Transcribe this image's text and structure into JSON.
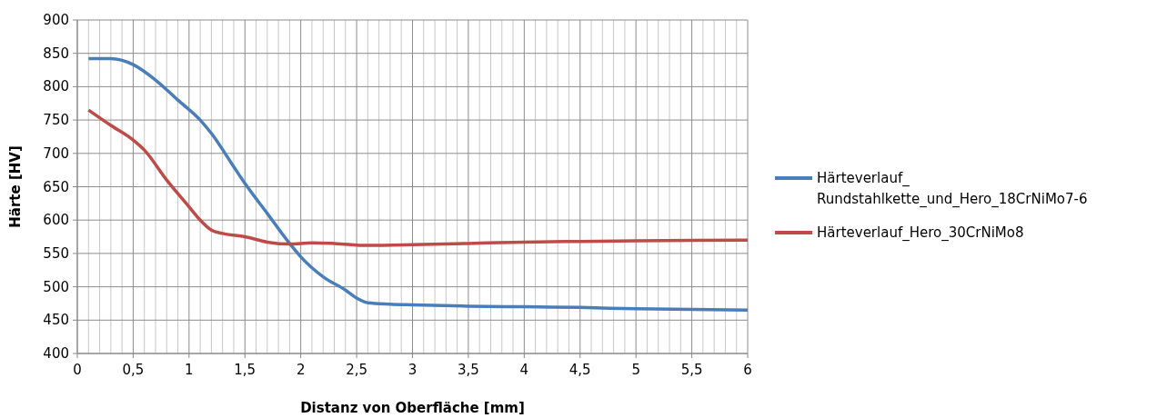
{
  "chart_data": {
    "type": "line",
    "xlabel": "Distanz von Oberfläche [mm]",
    "ylabel": "Härte [HV]",
    "xlim": [
      0,
      6
    ],
    "xticks": [
      0,
      {
        "value": 0.5,
        "label": "0,5"
      },
      1,
      {
        "value": 1.5,
        "label": "1,5"
      },
      2,
      {
        "value": 2.5,
        "label": "2,5"
      },
      3,
      {
        "value": 3.5,
        "label": "3,5"
      },
      4,
      {
        "value": 4.5,
        "label": "4,5"
      },
      5,
      {
        "value": 5.5,
        "label": "5,5"
      },
      6
    ],
    "ylim": [
      400,
      900
    ],
    "yticks": [
      400,
      450,
      500,
      550,
      600,
      650,
      700,
      750,
      800,
      850,
      900
    ],
    "grid": true,
    "legend": "right",
    "marker": "none",
    "line_style": "solid",
    "series": [
      {
        "name": "Härteverlauf_\nRundstahlkette_und_Hero_18CrNiMo7-6",
        "color": "#4a7ebb",
        "x": [
          0.1,
          0.3,
          0.5,
          0.7,
          0.9,
          1.1,
          1.2,
          1.4,
          1.5,
          1.7,
          1.9,
          2.0,
          2.2,
          2.4,
          2.5,
          2.6,
          2.8,
          3,
          3.5,
          4,
          4.5,
          5,
          5.5,
          6
        ],
        "values": [
          842,
          842,
          833,
          810,
          780,
          750,
          730,
          680,
          655,
          610,
          565,
          545,
          515,
          495,
          483,
          476,
          474,
          473,
          471,
          470,
          469,
          467,
          466,
          465
        ]
      },
      {
        "name": "Härteverlauf_Hero_30CrNiMo8",
        "color": "#be4b48",
        "x": [
          0.1,
          0.3,
          0.5,
          0.6,
          0.8,
          1.0,
          1.1,
          1.2,
          1.3,
          1.5,
          1.7,
          1.9,
          2.1,
          2.3,
          2.6,
          3.0,
          3.5,
          4,
          4.5,
          5,
          6
        ],
        "values": [
          765,
          742,
          720,
          705,
          660,
          620,
          600,
          585,
          580,
          575,
          567,
          564,
          566,
          565,
          562,
          563,
          565,
          567,
          568,
          569,
          570
        ]
      }
    ]
  }
}
